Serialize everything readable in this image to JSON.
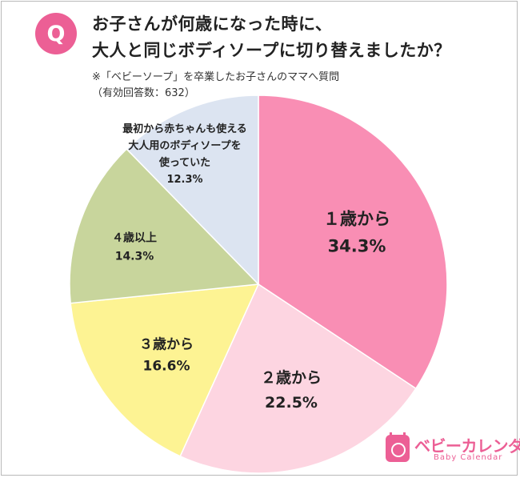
{
  "question": {
    "badge": "Q",
    "line1": "お子さんが何歳になった時に、",
    "line2": "大人と同じボディソープに切り替えましたか？"
  },
  "notes": {
    "line1": "※「ベビーソープ」を卒業したお子さんのママへ質問",
    "line2": "（有効回答数：632）"
  },
  "chart_data": {
    "type": "pie",
    "start": "12 o'clock",
    "direction": "clockwise",
    "slices": [
      {
        "label": "１歳から",
        "value": 34.3,
        "value_label": "34.3%",
        "color": "#f98eb4"
      },
      {
        "label": "２歳から",
        "value": 22.5,
        "value_label": "22.5%",
        "color": "#fdd5e1"
      },
      {
        "label": "３歳から",
        "value": 16.6,
        "value_label": "16.6%",
        "color": "#fdf393"
      },
      {
        "label": "４歳以上",
        "value": 14.3,
        "value_label": "14.3%",
        "color": "#c8d59c"
      },
      {
        "label": "最初から赤ちゃんも使える|大人用のボディソープを|使っていた",
        "value": 12.3,
        "value_label": "12.3%",
        "color": "#dce4f1"
      }
    ]
  },
  "logo": {
    "main": "ベビーカレンダー",
    "sub": "Baby Calendar"
  }
}
